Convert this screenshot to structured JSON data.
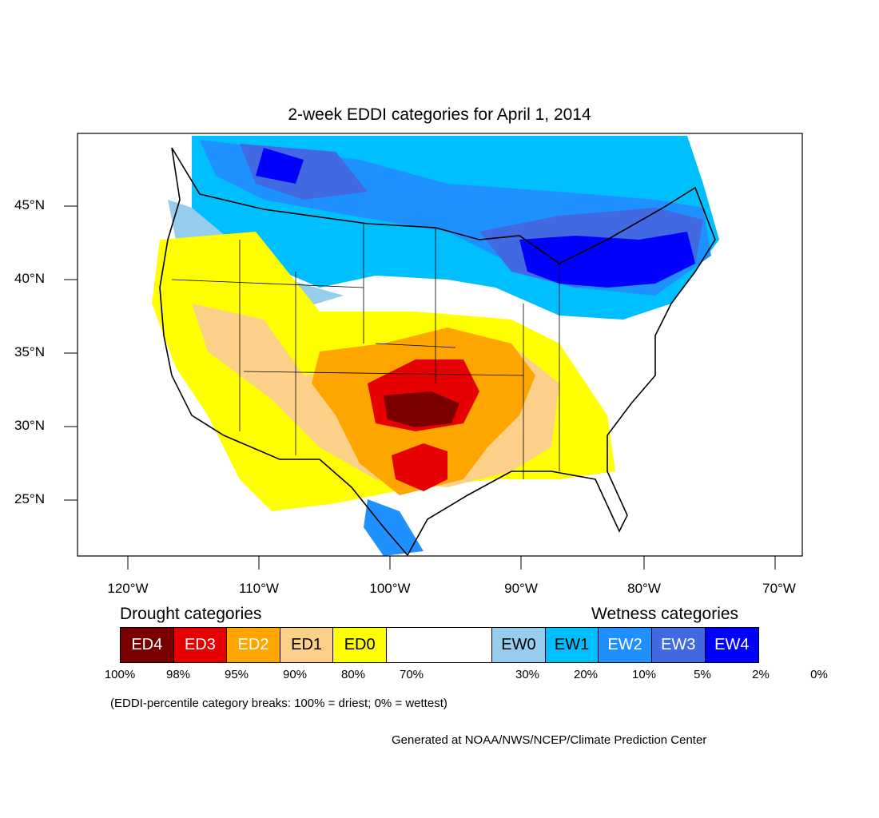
{
  "title": "2-week EDDI categories for April 1, 2014",
  "y_axis_labels": [
    "45°N",
    "40°N",
    "35°N",
    "30°N",
    "25°N"
  ],
  "x_axis_labels": [
    "120°W",
    "110°W",
    "100°W",
    "90°W",
    "80°W",
    "70°W"
  ],
  "legend": {
    "drought_heading": "Drought categories",
    "wetness_heading": "Wetness categories",
    "categories": [
      {
        "label": "ED4",
        "color": "#7a0000",
        "text_color": "#ffffff"
      },
      {
        "label": "ED3",
        "color": "#e60000",
        "text_color": "#ffffff"
      },
      {
        "label": "ED2",
        "color": "#ffa500",
        "text_color": "#ffffff"
      },
      {
        "label": "ED1",
        "color": "#fdd08a",
        "text_color": "#000000"
      },
      {
        "label": "ED0",
        "color": "#ffff00",
        "text_color": "#000000"
      },
      {
        "label": "",
        "color": "#ffffff",
        "text_color": "#000000"
      },
      {
        "label": "EW0",
        "color": "#96ccec",
        "text_color": "#000000"
      },
      {
        "label": "EW1",
        "color": "#00bfff",
        "text_color": "#000000"
      },
      {
        "label": "EW2",
        "color": "#1e90ff",
        "text_color": "#ffffff"
      },
      {
        "label": "EW3",
        "color": "#4169e1",
        "text_color": "#ffffff"
      },
      {
        "label": "EW4",
        "color": "#0000ff",
        "text_color": "#ffffff"
      }
    ],
    "ticks": [
      "100%",
      "98%",
      "95%",
      "90%",
      "80%",
      "70%",
      "30%",
      "20%",
      "10%",
      "5%",
      "2%",
      "0%"
    ]
  },
  "note": "(EDDI-percentile category breaks: 100% = driest; 0% = wettest)",
  "credit": "Generated at NOAA/NWS/NCEP/Climate Prediction Center"
}
